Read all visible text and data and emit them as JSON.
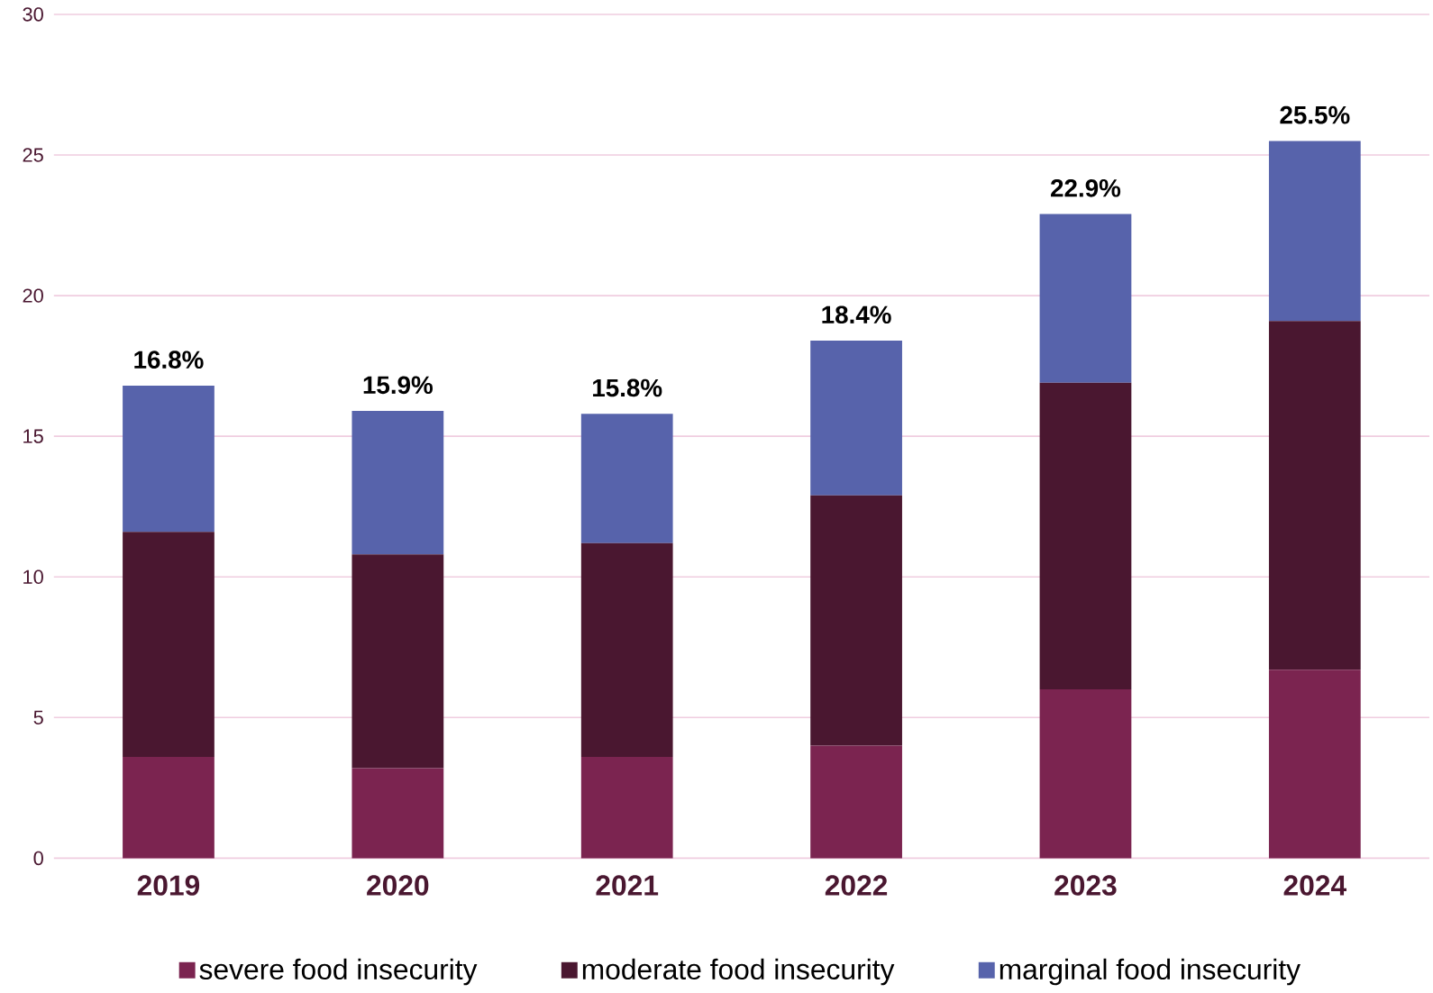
{
  "chart_data": {
    "type": "bar",
    "stacked": true,
    "categories": [
      "2019",
      "2020",
      "2021",
      "2022",
      "2023",
      "2024"
    ],
    "series": [
      {
        "name": "severe food insecurity",
        "color": "#7b2450",
        "values": [
          3.6,
          3.2,
          3.6,
          4.0,
          6.0,
          6.7
        ]
      },
      {
        "name": "moderate food insecurity",
        "color": "#4a1730",
        "values": [
          8.0,
          7.6,
          7.6,
          8.9,
          10.9,
          12.4
        ]
      },
      {
        "name": "marginal food insecurity",
        "color": "#5763ab",
        "values": [
          5.2,
          5.1,
          4.6,
          5.5,
          6.0,
          6.4
        ]
      }
    ],
    "totals": [
      "16.8%",
      "15.9%",
      "15.8%",
      "18.4%",
      "22.9%",
      "25.5%"
    ],
    "ylim": [
      0,
      30
    ],
    "yticks": [
      0,
      5,
      10,
      15,
      20,
      25,
      30
    ],
    "grid": "y",
    "legend": "bottom"
  }
}
